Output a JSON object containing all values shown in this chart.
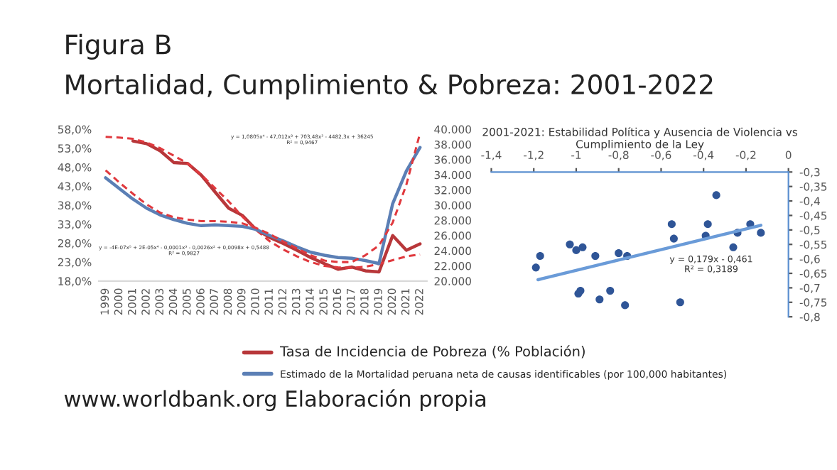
{
  "chart_data": [
    {
      "type": "line",
      "title": "Figura B",
      "subtitle": "Mortalidad, Cumplimiento & Pobreza: 2001-2022",
      "categories": [
        "1999",
        "2000",
        "2001",
        "2002",
        "2003",
        "2004",
        "2005",
        "2006",
        "2007",
        "2008",
        "2009",
        "2010",
        "2011",
        "2012",
        "2013",
        "2014",
        "2015",
        "2016",
        "2017",
        "2018",
        "2019",
        "2020",
        "2021",
        "2022"
      ],
      "series": [
        {
          "name": "Tasa de Incidencia de Pobreza (% Población)",
          "color": "#b8373a",
          "line_style": "solid",
          "values": [
            null,
            null,
            54.9,
            54.2,
            52.3,
            49.2,
            49.0,
            45.9,
            41.5,
            37.2,
            35.3,
            31.6,
            29.5,
            27.9,
            26.1,
            24.2,
            22.6,
            21.1,
            21.7,
            20.7,
            20.4,
            30.0,
            26.1,
            27.8
          ]
        },
        {
          "name": "Estimado de la Mortalidad peruana neta de causas identificables (por 100,000 habitantes)",
          "color": "#5b7fb5",
          "line_style": "solid",
          "axis": "y2",
          "values": [
            33600,
            32200,
            30800,
            29600,
            28700,
            28100,
            27600,
            27300,
            27400,
            27300,
            27200,
            26800,
            26000,
            25300,
            24500,
            23800,
            23400,
            23100,
            23000,
            22700,
            22300,
            30200,
            34500,
            37600
          ]
        },
        {
          "color": "#e0393e",
          "line_style": "dashed",
          "values": [
            56.0,
            55.8,
            55.5,
            54.5,
            53.0,
            51.0,
            49.0,
            46.0,
            42.5,
            39.0,
            35.0,
            31.5,
            28.5,
            26.3,
            24.5,
            23.0,
            22.0,
            21.6,
            21.5,
            21.8,
            22.5,
            23.5,
            24.5,
            25.0
          ]
        },
        {
          "color": "#e0393e",
          "line_style": "dashed",
          "axis": "y2",
          "values": [
            34600,
            33000,
            31500,
            30100,
            29000,
            28400,
            28100,
            27900,
            27900,
            27800,
            27600,
            27000,
            26200,
            25200,
            24300,
            23400,
            22700,
            22500,
            22500,
            23400,
            24700,
            27700,
            32700,
            39500
          ]
        }
      ],
      "ylim": [
        18,
        58
      ],
      "yticks": [
        {
          "value": 18,
          "label": "18,0%"
        },
        {
          "value": 23,
          "label": "23,0%"
        },
        {
          "value": 28,
          "label": "28,0%"
        },
        {
          "value": 33,
          "label": "33,0%"
        },
        {
          "value": 38,
          "label": "38,0%"
        },
        {
          "value": 43,
          "label": "43,0%"
        },
        {
          "value": 48,
          "label": "48,0%"
        },
        {
          "value": 53,
          "label": "53,0%"
        },
        {
          "value": 58,
          "label": "58,0%"
        }
      ],
      "y2lim": [
        20000,
        40000
      ],
      "y2ticks": [
        {
          "value": 20000,
          "label": "20.000"
        },
        {
          "value": 22000,
          "label": "22.000"
        },
        {
          "value": 24000,
          "label": "24.000"
        },
        {
          "value": 26000,
          "label": "26.000"
        },
        {
          "value": 28000,
          "label": "28.000"
        },
        {
          "value": 30000,
          "label": "30.000"
        },
        {
          "value": 32000,
          "label": "32.000"
        },
        {
          "value": 34000,
          "label": "34.000"
        },
        {
          "value": 36000,
          "label": "36.000"
        },
        {
          "value": 38000,
          "label": "38.000"
        },
        {
          "value": 40000,
          "label": "40.000"
        }
      ],
      "grid": false,
      "legend": "bottom",
      "annotations": [
        "y = -4E-07x⁵ + 2E-05x⁴ - 0,0001x³ - 0,0026x² + 0,0098x + 0,5488\nR² = 0,9827",
        "y = 1,0805x⁴ - 47,012x³ + 703,48x² - 4482,3x + 36245\nR² = 0,9467",
        "www.worldbank.org Elaboración propia"
      ]
    },
    {
      "type": "scatter",
      "title": "2001-2021: Estabilidad Política y Ausencia de Violencia vs\nCumplimiento de la Ley",
      "series": [
        {
          "color": "#2f5597",
          "marker": "circle",
          "x": [
            -1.19,
            -1.17,
            -1.03,
            -1.0,
            -0.97,
            -0.91,
            -0.8,
            -0.76,
            -0.99,
            -0.98,
            -0.89,
            -0.84,
            -0.77,
            -0.55,
            -0.54,
            -0.51,
            -0.39,
            -0.38,
            -0.34,
            -0.26,
            -0.24,
            -0.18,
            -0.13
          ],
          "values": [
            -0.63,
            -0.59,
            -0.55,
            -0.57,
            -0.56,
            -0.59,
            -0.58,
            -0.59,
            -0.72,
            -0.71,
            -0.74,
            -0.71,
            -0.76,
            -0.48,
            -0.53,
            -0.75,
            -0.52,
            -0.48,
            -0.38,
            -0.56,
            -0.51,
            -0.48,
            -0.51
          ]
        },
        {
          "type": "line",
          "color": "#6a9bd8",
          "line_style": "solid",
          "x": [
            -1.18,
            -0.13
          ],
          "values": [
            -0.672,
            -0.484
          ]
        }
      ],
      "xlim": [
        -1.4,
        0
      ],
      "xticks": [
        {
          "value": -1.4,
          "label": "-1,4"
        },
        {
          "value": -1.2,
          "label": "-1,2"
        },
        {
          "value": -1.0,
          "label": "-1"
        },
        {
          "value": -0.8,
          "label": "-0,8"
        },
        {
          "value": -0.6,
          "label": "-0,6"
        },
        {
          "value": -0.4,
          "label": "-0,4"
        },
        {
          "value": -0.2,
          "label": "-0,2"
        },
        {
          "value": 0,
          "label": "0"
        }
      ],
      "ylim": [
        -0.8,
        -0.3
      ],
      "yticks": [
        {
          "value": -0.3,
          "label": "-0,3"
        },
        {
          "value": -0.35,
          "label": "-0,35"
        },
        {
          "value": -0.4,
          "label": "-0,4"
        },
        {
          "value": -0.45,
          "label": "-0,45"
        },
        {
          "value": -0.5,
          "label": "-0,5"
        },
        {
          "value": -0.55,
          "label": "-0,55"
        },
        {
          "value": -0.6,
          "label": "-0,6"
        },
        {
          "value": -0.65,
          "label": "-0,65"
        },
        {
          "value": -0.7,
          "label": "-0,7"
        },
        {
          "value": -0.75,
          "label": "-0,75"
        },
        {
          "value": -0.8,
          "label": "-0,8"
        }
      ],
      "grid": false,
      "legend": false,
      "annotations": [
        "y = 0,179x - 0,461\nR² = 0,3189"
      ]
    }
  ]
}
